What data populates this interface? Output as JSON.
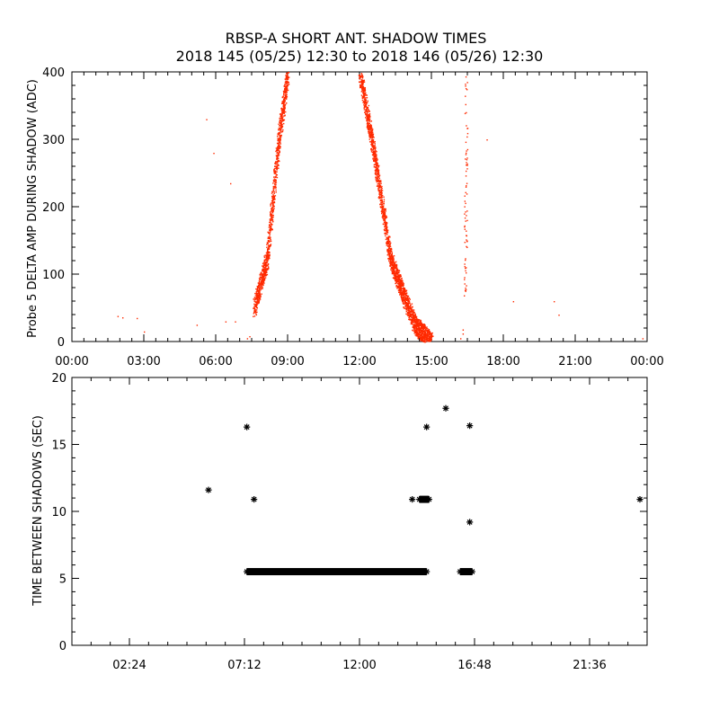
{
  "title_line1": "RBSP-A SHORT ANT. SHADOW TIMES",
  "title_line2": "2018 145 (05/25) 12:30 to 2018 146 (05/26) 12:30",
  "colors": {
    "top_points": "#ff2a00",
    "bottom_points": "#000000",
    "axes": "#000000"
  },
  "chart_data": [
    {
      "type": "scatter",
      "panel": "top",
      "ylabel": "Probe 5 DELTA AMP DURING SHADOW (ADC)",
      "xlim": [
        0,
        24
      ],
      "ylim": [
        0,
        400
      ],
      "x_unit": "hours",
      "x_ticks": [
        {
          "value": 0,
          "label": "00:00"
        },
        {
          "value": 3,
          "label": "03:00"
        },
        {
          "value": 6,
          "label": "06:00"
        },
        {
          "value": 9,
          "label": "09:00"
        },
        {
          "value": 12,
          "label": "12:00"
        },
        {
          "value": 15,
          "label": "15:00"
        },
        {
          "value": 18,
          "label": "18:00"
        },
        {
          "value": 21,
          "label": "21:00"
        },
        {
          "value": 24,
          "label": "00:00"
        }
      ],
      "y_ticks": [
        {
          "value": 0,
          "label": "0"
        },
        {
          "value": 100,
          "label": "100"
        },
        {
          "value": 200,
          "label": "200"
        },
        {
          "value": 300,
          "label": "300"
        },
        {
          "value": 400,
          "label": "400"
        }
      ],
      "series": [
        {
          "segments": [
            {
              "x0": 7.6,
              "x1": 8.1,
              "y0": 50,
              "y1": 120
            },
            {
              "x0": 8.1,
              "x1": 8.7,
              "y0": 110,
              "y1": 330
            },
            {
              "x0": 8.7,
              "x1": 9.0,
              "y0": 320,
              "y1": 400
            },
            {
              "x0": 12.0,
              "x1": 12.5,
              "y0": 400,
              "y1": 300
            },
            {
              "x0": 12.5,
              "x1": 13.3,
              "y0": 300,
              "y1": 120
            },
            {
              "x0": 13.3,
              "x1": 14.3,
              "y0": 120,
              "y1": 25
            },
            {
              "x0": 14.3,
              "x1": 15.0,
              "y0": 25,
              "y1": 0
            },
            {
              "x0": 16.4,
              "x1": 16.45,
              "y0": 60,
              "y1": 400
            }
          ],
          "extra_points": [
            [
              1.9,
              38
            ],
            [
              2.1,
              36
            ],
            [
              2.7,
              35
            ],
            [
              3.0,
              15
            ],
            [
              5.2,
              25
            ],
            [
              5.6,
              330
            ],
            [
              5.9,
              280
            ],
            [
              6.4,
              30
            ],
            [
              6.6,
              235
            ],
            [
              6.8,
              30
            ],
            [
              7.3,
              5
            ],
            [
              7.4,
              8
            ],
            [
              16.2,
              5
            ],
            [
              16.3,
              12
            ],
            [
              16.3,
              18
            ],
            [
              17.3,
              300
            ],
            [
              18.4,
              60
            ],
            [
              20.1,
              60
            ],
            [
              20.3,
              40
            ],
            [
              23.8,
              5
            ]
          ]
        }
      ]
    },
    {
      "type": "scatter",
      "panel": "bottom",
      "ylabel": "TIME BETWEEN SHADOWS (SEC)",
      "xlim": [
        0,
        24
      ],
      "ylim": [
        0,
        20
      ],
      "x_unit": "hours",
      "x_ticks": [
        {
          "value": 2.4,
          "label": "02:24"
        },
        {
          "value": 7.2,
          "label": "07:12"
        },
        {
          "value": 12.0,
          "label": "12:00"
        },
        {
          "value": 16.8,
          "label": "16:48"
        },
        {
          "value": 21.6,
          "label": "21:36"
        }
      ],
      "y_ticks": [
        {
          "value": 0,
          "label": "0"
        },
        {
          "value": 5,
          "label": "5"
        },
        {
          "value": 10,
          "label": "10"
        },
        {
          "value": 15,
          "label": "15"
        },
        {
          "value": 20,
          "label": "20"
        }
      ],
      "series": [
        {
          "bands": [
            {
              "x0": 7.3,
              "x1": 14.8,
              "y": 5.5
            },
            {
              "x0": 16.2,
              "x1": 16.7,
              "y": 5.5
            },
            {
              "x0": 14.5,
              "x1": 14.9,
              "y": 10.9
            }
          ],
          "points": [
            [
              5.7,
              11.6
            ],
            [
              7.3,
              16.3
            ],
            [
              7.6,
              10.9
            ],
            [
              14.2,
              10.9
            ],
            [
              14.8,
              16.3
            ],
            [
              15.6,
              17.7
            ],
            [
              16.6,
              16.4
            ],
            [
              16.6,
              9.2
            ],
            [
              23.7,
              10.9
            ]
          ]
        }
      ]
    }
  ]
}
